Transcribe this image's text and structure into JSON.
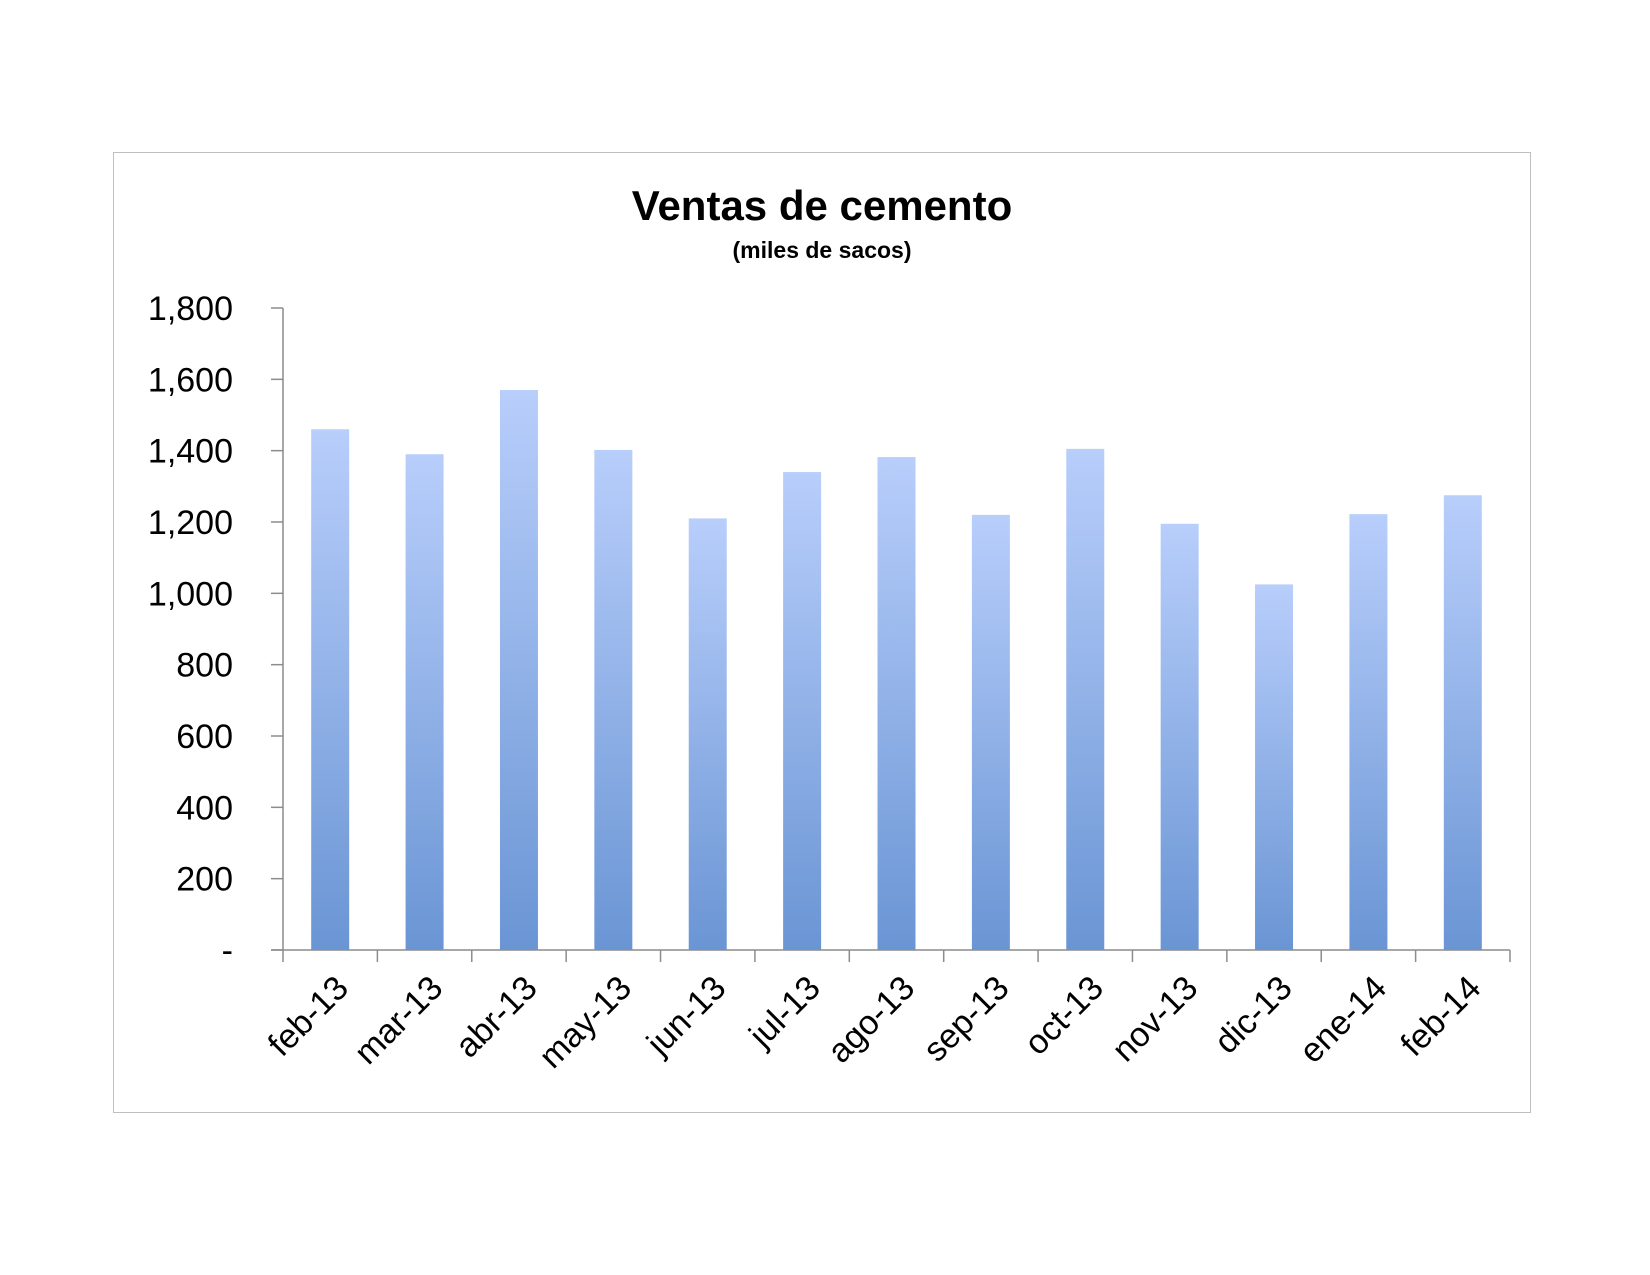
{
  "chart_data": {
    "type": "bar",
    "title": "Ventas de cemento",
    "subtitle": "(miles de sacos)",
    "categories": [
      "feb-13",
      "mar-13",
      "abr-13",
      "may-13",
      "jun-13",
      "jul-13",
      "ago-13",
      "sep-13",
      "oct-13",
      "nov-13",
      "dic-13",
      "ene-14",
      "feb-14"
    ],
    "values": [
      1460,
      1390,
      1570,
      1402,
      1210,
      1340,
      1382,
      1220,
      1405,
      1195,
      1025,
      1222,
      1275
    ],
    "ylim": [
      0,
      1800
    ],
    "yticks": [
      0,
      200,
      400,
      600,
      800,
      1000,
      1200,
      1400,
      1600,
      1800
    ],
    "ytick_labels": [
      "-",
      "200",
      "400",
      "600",
      "800",
      "1,000",
      "1,200",
      "1,400",
      "1,600",
      "1,800"
    ],
    "grid": false,
    "legend": "none",
    "colors": {
      "bar_top": "#b8cefb",
      "bar_bottom": "#6a95d4",
      "axis": "#8c8c8c"
    }
  }
}
